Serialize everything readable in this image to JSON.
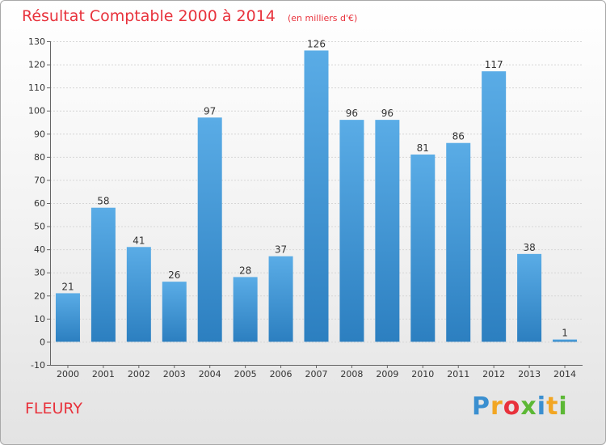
{
  "title": "Résultat Comptable 2000 à 2014",
  "unit_note": "(en milliers d'€)",
  "commune": "FLEURY",
  "logo": {
    "letters": [
      "P",
      "r",
      "o",
      "x",
      "i",
      "t",
      "i"
    ],
    "colors": [
      "#3a8fd0",
      "#f2a623",
      "#e8323c",
      "#5cb835",
      "#3a8fd0",
      "#f2a623",
      "#5cb835"
    ]
  },
  "colors": {
    "accent": "#e8323c",
    "bar_top": "#5aace6",
    "bar_bottom": "#2c7fc0",
    "axis": "#666666",
    "grid": "#d6d6d6"
  },
  "chart_data": {
    "type": "bar",
    "title": "Résultat Comptable 2000 à 2014",
    "xlabel": "",
    "ylabel": "(en milliers d'€)",
    "ylim": [
      -10,
      130
    ],
    "yticks": [
      -10,
      0,
      10,
      20,
      30,
      40,
      50,
      60,
      70,
      80,
      90,
      100,
      110,
      120,
      130
    ],
    "grid": true,
    "categories": [
      "2000",
      "2001",
      "2002",
      "2003",
      "2004",
      "2005",
      "2006",
      "2007",
      "2008",
      "2009",
      "2010",
      "2011",
      "2012",
      "2013",
      "2014"
    ],
    "values": [
      21,
      58,
      41,
      26,
      97,
      28,
      37,
      126,
      96,
      96,
      81,
      86,
      117,
      38,
      1
    ]
  }
}
